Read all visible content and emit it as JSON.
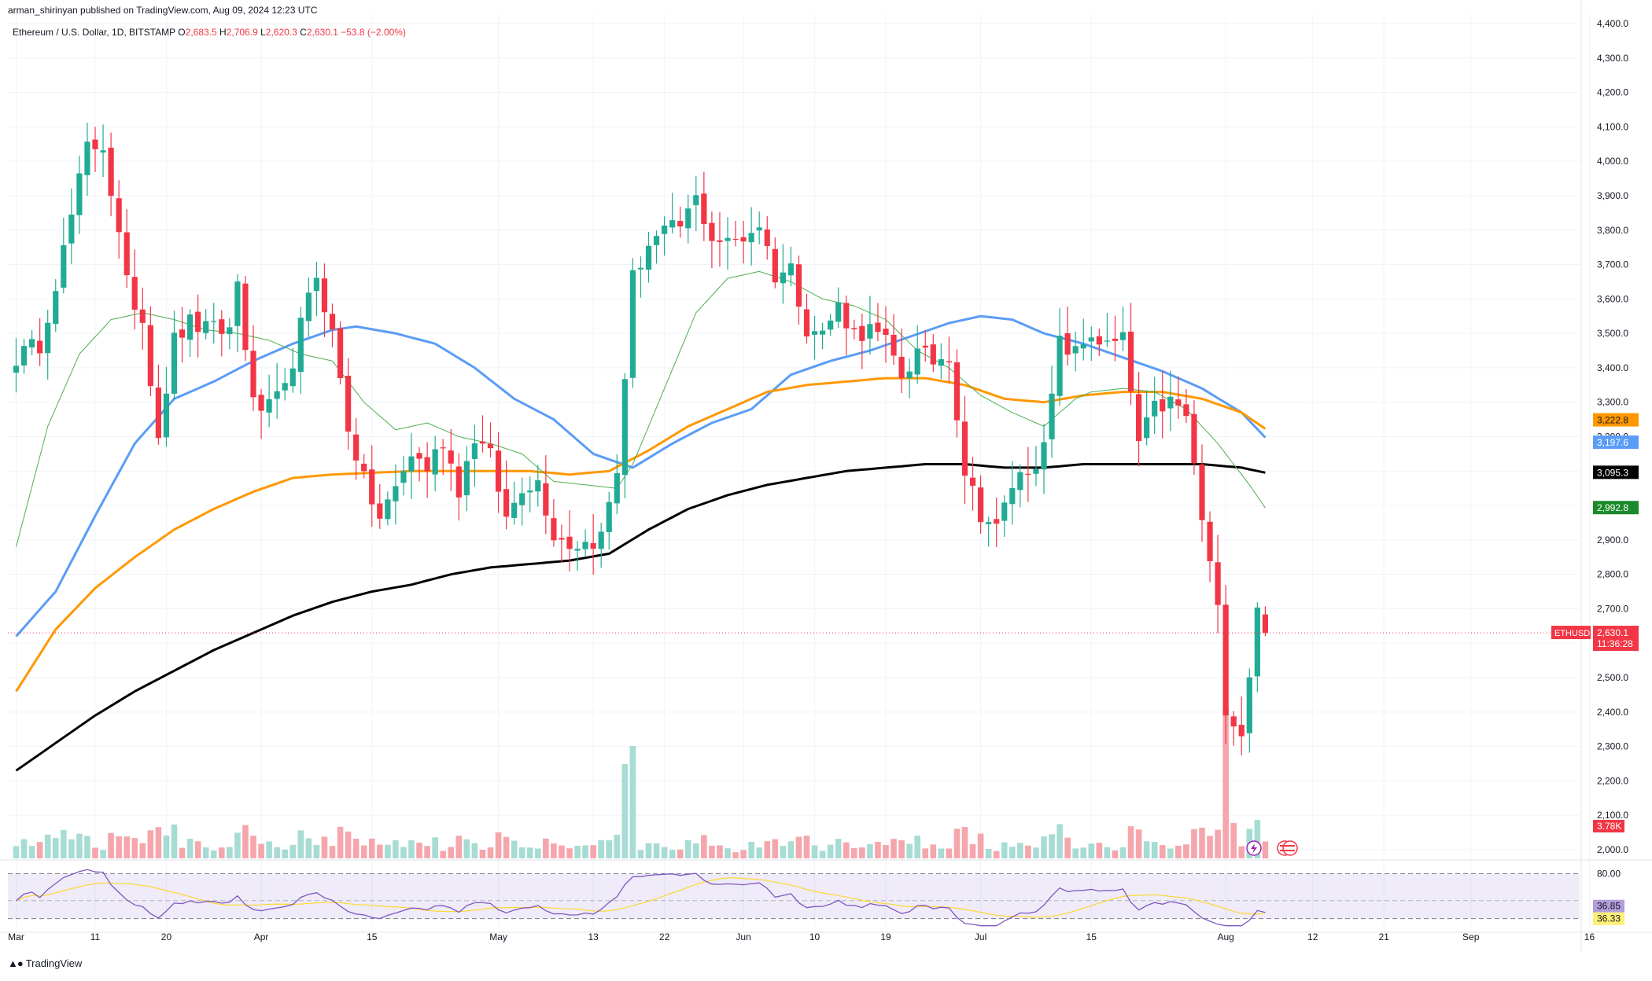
{
  "header": {
    "publisher": "arman_shirinyan published on TradingView.com, Aug 09, 2024 12:23 UTC",
    "symbol": "Ethereum / U.S. Dollar, 1D, BITSTAMP",
    "open_label": "O",
    "open": "2,683.5",
    "high_label": "H",
    "high": "2,706.9",
    "low_label": "L",
    "low": "2,620.3",
    "close_label": "C",
    "close": "2,630.1",
    "change": "−53.8 (−2.00%)"
  },
  "footer": {
    "brand": "TradingView"
  },
  "colors": {
    "up": "#22ab94",
    "down": "#f23645",
    "vol_up": "#a6dcd3",
    "vol_down": "#f5a6ac",
    "ma_blue": "#5b9cf6",
    "ma_orange": "#ff9800",
    "ma_black": "#000000",
    "ma_green": "#4caf50",
    "rsi": "#7e57c2",
    "rsi_ma": "#fdd835",
    "rsi_band": "rgba(126,87,194,0.12)"
  },
  "chart_data": {
    "type": "candlestick",
    "title": "Ethereum / U.S. Dollar, 1D, BITSTAMP",
    "ylim": [
      1982,
      4425
    ],
    "y_ticks": [
      2000,
      2100,
      2200,
      2300,
      2400,
      2500,
      2600,
      2700,
      2800,
      2900,
      3000,
      3100,
      3200,
      3300,
      3400,
      3500,
      3600,
      3700,
      3800,
      3900,
      4000,
      4100,
      4200,
      4300,
      4400
    ],
    "y_tick_labels": [
      "2,000.0",
      "2,100.0",
      "2,200.0",
      "2,300.0",
      "2,400.0",
      "2,500.0",
      "2,600.0",
      "2,700.0",
      "2,800.0",
      "2,900.0",
      "3,000.0",
      "3,100.0",
      "3,200.0",
      "3,300.0",
      "3,400.0",
      "3,500.0",
      "3,600.0",
      "3,700.0",
      "3,800.0",
      "3,900.0",
      "4,000.0",
      "4,100.0",
      "4,200.0",
      "4,300.0",
      "4,400.0"
    ],
    "x_range_days": [
      0,
      206
    ],
    "x_ticks": [
      {
        "day": 0,
        "label": "Mar"
      },
      {
        "day": 10,
        "label": "11"
      },
      {
        "day": 19,
        "label": "20"
      },
      {
        "day": 31,
        "label": "Apr"
      },
      {
        "day": 45,
        "label": "15"
      },
      {
        "day": 61,
        "label": "May"
      },
      {
        "day": 73,
        "label": "13"
      },
      {
        "day": 82,
        "label": "22"
      },
      {
        "day": 92,
        "label": "Jun"
      },
      {
        "day": 101,
        "label": "10"
      },
      {
        "day": 110,
        "label": "19"
      },
      {
        "day": 122,
        "label": "Jul"
      },
      {
        "day": 136,
        "label": "15"
      },
      {
        "day": 153,
        "label": "Aug"
      },
      {
        "day": 164,
        "label": "12"
      },
      {
        "day": 173,
        "label": "21"
      },
      {
        "day": 184,
        "label": "Sep"
      },
      {
        "day": 199,
        "label": "16"
      }
    ],
    "close_anchors": [
      [
        0,
        3430
      ],
      [
        3,
        3470
      ],
      [
        6,
        3740
      ],
      [
        9,
        4040
      ],
      [
        11,
        4050
      ],
      [
        14,
        3640
      ],
      [
        16,
        3540
      ],
      [
        18,
        3210
      ],
      [
        20,
        3480
      ],
      [
        22,
        3530
      ],
      [
        24,
        3510
      ],
      [
        27,
        3510
      ],
      [
        28,
        3650
      ],
      [
        30,
        3290
      ],
      [
        32,
        3280
      ],
      [
        34,
        3330
      ],
      [
        36,
        3520
      ],
      [
        38,
        3670
      ],
      [
        40,
        3500
      ],
      [
        42,
        3230
      ],
      [
        44,
        3070
      ],
      [
        46,
        2960
      ],
      [
        48,
        3050
      ],
      [
        50,
        3150
      ],
      [
        52,
        3110
      ],
      [
        54,
        3190
      ],
      [
        56,
        3050
      ],
      [
        58,
        3200
      ],
      [
        60,
        3140
      ],
      [
        62,
        2960
      ],
      [
        64,
        3060
      ],
      [
        66,
        3070
      ],
      [
        68,
        2920
      ],
      [
        70,
        2890
      ],
      [
        72,
        2890
      ],
      [
        74,
        2910
      ],
      [
        76,
        3100
      ],
      [
        78,
        3660
      ],
      [
        80,
        3760
      ],
      [
        82,
        3790
      ],
      [
        84,
        3810
      ],
      [
        86,
        3890
      ],
      [
        88,
        3780
      ],
      [
        90,
        3760
      ],
      [
        92,
        3780
      ],
      [
        94,
        3820
      ],
      [
        96,
        3670
      ],
      [
        98,
        3690
      ],
      [
        100,
        3520
      ],
      [
        102,
        3500
      ],
      [
        104,
        3580
      ],
      [
        106,
        3500
      ],
      [
        108,
        3510
      ],
      [
        110,
        3470
      ],
      [
        112,
        3380
      ],
      [
        114,
        3440
      ],
      [
        116,
        3420
      ],
      [
        118,
        3440
      ],
      [
        120,
        3100
      ],
      [
        122,
        2980
      ],
      [
        124,
        2930
      ],
      [
        126,
        3060
      ],
      [
        128,
        3110
      ],
      [
        130,
        3160
      ],
      [
        132,
        3470
      ],
      [
        134,
        3440
      ],
      [
        136,
        3500
      ],
      [
        138,
        3460
      ],
      [
        140,
        3480
      ],
      [
        142,
        3180
      ],
      [
        144,
        3280
      ],
      [
        146,
        3300
      ],
      [
        148,
        3260
      ],
      [
        150,
        2960
      ],
      [
        152,
        2690
      ],
      [
        153,
        2420
      ],
      [
        155,
        2340
      ],
      [
        157,
        2690
      ],
      [
        158,
        2630
      ]
    ],
    "summary_ohlc": {
      "open": 2683.5,
      "high": 2706.9,
      "low": 2620.3,
      "close": 2630.1,
      "change": -53.8,
      "change_pct": -2.0
    },
    "moving_averages": [
      {
        "name": "MA blue",
        "color": "#5b9cf6",
        "last": 3197.6,
        "anchors": [
          [
            0,
            2620
          ],
          [
            5,
            2750
          ],
          [
            10,
            2970
          ],
          [
            15,
            3180
          ],
          [
            20,
            3310
          ],
          [
            25,
            3360
          ],
          [
            30,
            3420
          ],
          [
            35,
            3470
          ],
          [
            40,
            3510
          ],
          [
            43,
            3520
          ],
          [
            48,
            3500
          ],
          [
            53,
            3470
          ],
          [
            58,
            3400
          ],
          [
            63,
            3310
          ],
          [
            68,
            3250
          ],
          [
            73,
            3150
          ],
          [
            78,
            3110
          ],
          [
            83,
            3180
          ],
          [
            88,
            3240
          ],
          [
            93,
            3280
          ],
          [
            98,
            3380
          ],
          [
            103,
            3420
          ],
          [
            108,
            3450
          ],
          [
            113,
            3490
          ],
          [
            118,
            3530
          ],
          [
            122,
            3550
          ],
          [
            126,
            3540
          ],
          [
            130,
            3500
          ],
          [
            135,
            3470
          ],
          [
            140,
            3430
          ],
          [
            145,
            3390
          ],
          [
            150,
            3340
          ],
          [
            155,
            3270
          ],
          [
            158,
            3197.6
          ]
        ]
      },
      {
        "name": "MA orange",
        "color": "#ff9800",
        "last": 3222.8,
        "anchors": [
          [
            0,
            2460
          ],
          [
            5,
            2640
          ],
          [
            10,
            2760
          ],
          [
            15,
            2850
          ],
          [
            20,
            2930
          ],
          [
            25,
            2990
          ],
          [
            30,
            3040
          ],
          [
            35,
            3080
          ],
          [
            40,
            3090
          ],
          [
            45,
            3095
          ],
          [
            50,
            3100
          ],
          [
            55,
            3100
          ],
          [
            60,
            3100
          ],
          [
            65,
            3100
          ],
          [
            70,
            3090
          ],
          [
            75,
            3100
          ],
          [
            80,
            3160
          ],
          [
            85,
            3230
          ],
          [
            90,
            3280
          ],
          [
            95,
            3330
          ],
          [
            100,
            3350
          ],
          [
            105,
            3360
          ],
          [
            110,
            3370
          ],
          [
            115,
            3370
          ],
          [
            120,
            3350
          ],
          [
            125,
            3310
          ],
          [
            130,
            3300
          ],
          [
            135,
            3320
          ],
          [
            140,
            3330
          ],
          [
            145,
            3330
          ],
          [
            150,
            3310
          ],
          [
            155,
            3270
          ],
          [
            158,
            3222.8
          ]
        ]
      },
      {
        "name": "MA black",
        "color": "#000000",
        "last": 3095.3,
        "anchors": [
          [
            0,
            2230
          ],
          [
            5,
            2310
          ],
          [
            10,
            2390
          ],
          [
            15,
            2460
          ],
          [
            20,
            2520
          ],
          [
            25,
            2580
          ],
          [
            30,
            2630
          ],
          [
            35,
            2680
          ],
          [
            40,
            2720
          ],
          [
            45,
            2750
          ],
          [
            50,
            2770
          ],
          [
            55,
            2800
          ],
          [
            60,
            2820
          ],
          [
            65,
            2830
          ],
          [
            70,
            2840
          ],
          [
            75,
            2860
          ],
          [
            80,
            2930
          ],
          [
            85,
            2990
          ],
          [
            90,
            3030
          ],
          [
            95,
            3060
          ],
          [
            100,
            3080
          ],
          [
            105,
            3100
          ],
          [
            110,
            3110
          ],
          [
            115,
            3120
          ],
          [
            120,
            3120
          ],
          [
            125,
            3110
          ],
          [
            130,
            3110
          ],
          [
            135,
            3120
          ],
          [
            140,
            3120
          ],
          [
            145,
            3120
          ],
          [
            150,
            3120
          ],
          [
            155,
            3110
          ],
          [
            158,
            3095.3
          ]
        ]
      },
      {
        "name": "MA green",
        "color": "#4caf50",
        "last": 2992.8,
        "anchors": [
          [
            0,
            2880
          ],
          [
            4,
            3230
          ],
          [
            8,
            3440
          ],
          [
            12,
            3540
          ],
          [
            16,
            3560
          ],
          [
            20,
            3540
          ],
          [
            24,
            3510
          ],
          [
            28,
            3500
          ],
          [
            32,
            3480
          ],
          [
            36,
            3440
          ],
          [
            40,
            3420
          ],
          [
            44,
            3300
          ],
          [
            48,
            3220
          ],
          [
            52,
            3240
          ],
          [
            56,
            3200
          ],
          [
            60,
            3180
          ],
          [
            64,
            3150
          ],
          [
            68,
            3070
          ],
          [
            72,
            3060
          ],
          [
            76,
            3050
          ],
          [
            78,
            3120
          ],
          [
            82,
            3340
          ],
          [
            86,
            3560
          ],
          [
            90,
            3660
          ],
          [
            94,
            3680
          ],
          [
            98,
            3650
          ],
          [
            102,
            3600
          ],
          [
            106,
            3580
          ],
          [
            110,
            3540
          ],
          [
            114,
            3450
          ],
          [
            118,
            3400
          ],
          [
            122,
            3320
          ],
          [
            126,
            3270
          ],
          [
            130,
            3230
          ],
          [
            134,
            3310
          ],
          [
            136,
            3330
          ],
          [
            140,
            3340
          ],
          [
            144,
            3330
          ],
          [
            148,
            3280
          ],
          [
            152,
            3180
          ],
          [
            156,
            3060
          ],
          [
            158,
            2992.8
          ]
        ]
      }
    ],
    "volume_summary": "3.78K",
    "rsi": {
      "rsi_value": 36.85,
      "rsi_label": "36.85",
      "rsi_ma_value": 36.33,
      "rsi_ma_label": "36.33",
      "upper_band": 80,
      "upper_band_label": "80.00",
      "lower_band": 30,
      "range": [
        20,
        90
      ]
    },
    "price_tag": {
      "symbol": "ETHUSD",
      "price": "2,630.1",
      "countdown": "11:36:28"
    },
    "ma_labels": [
      "3,222.8",
      "3,197.6",
      "3,095.3",
      "2,992.8"
    ]
  }
}
